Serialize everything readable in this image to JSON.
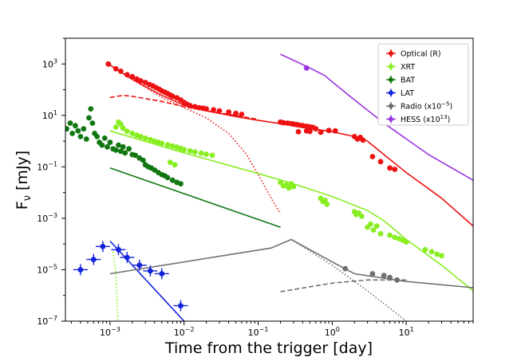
{
  "chart_data": {
    "type": "scatter",
    "xlabel": "Time from the trigger [day]",
    "ylabel": "F_ν [mJy]",
    "ylabel_main": "F",
    "ylabel_sub": "ν",
    "ylabel_unit": " [mJy]",
    "xscale": "log",
    "yscale": "log",
    "xlim": [
      0.00025,
      80
    ],
    "ylim": [
      1e-07,
      10000
    ],
    "legend_position": "top-right",
    "x_ticks": [
      {
        "value": 0.001,
        "base": "10",
        "exp": "−3"
      },
      {
        "value": 0.01,
        "base": "10",
        "exp": "−2"
      },
      {
        "value": 0.1,
        "base": "10",
        "exp": "−1"
      },
      {
        "value": 1,
        "base": "10",
        "exp": "0"
      },
      {
        "value": 10,
        "base": "10",
        "exp": "1"
      }
    ],
    "y_ticks": [
      {
        "value": 1e-07,
        "base": "10",
        "exp": "−7"
      },
      {
        "value": 1e-05,
        "base": "10",
        "exp": "−5"
      },
      {
        "value": 0.001,
        "base": "10",
        "exp": "−3"
      },
      {
        "value": 0.1,
        "base": "10",
        "exp": "−1"
      },
      {
        "value": 10,
        "base": "10",
        "exp": "1"
      },
      {
        "value": 1000,
        "base": "10",
        "exp": "3"
      }
    ],
    "legend": [
      {
        "label": "Optical (R)",
        "sup": "",
        "color": "#ee1111"
      },
      {
        "label": "XRT",
        "sup": "",
        "color": "#88ee22"
      },
      {
        "label": "BAT",
        "sup": "",
        "color": "#117711"
      },
      {
        "label": "LAT",
        "sup": "",
        "color": "#1122dd"
      },
      {
        "label": "Radio (x10",
        "sup": "−5",
        "suffix": ")",
        "color": "#707070"
      },
      {
        "label": "HESS (x10",
        "sup": "13",
        "suffix": ")",
        "color": "#9933dd"
      }
    ],
    "series": [
      {
        "name": "Optical (R)",
        "color": "#ee1111",
        "kind": "points",
        "points": [
          [
            0.00095,
            1000
          ],
          [
            0.0012,
            650
          ],
          [
            0.0014,
            520
          ],
          [
            0.0017,
            380
          ],
          [
            0.002,
            320
          ],
          [
            0.0023,
            260
          ],
          [
            0.0026,
            220
          ],
          [
            0.003,
            190
          ],
          [
            0.0034,
            160
          ],
          [
            0.0038,
            140
          ],
          [
            0.0042,
            120
          ],
          [
            0.0046,
            105
          ],
          [
            0.005,
            90
          ],
          [
            0.0055,
            80
          ],
          [
            0.006,
            70
          ],
          [
            0.0065,
            62
          ],
          [
            0.007,
            55
          ],
          [
            0.008,
            48
          ],
          [
            0.009,
            40
          ],
          [
            0.01,
            32
          ],
          [
            0.011,
            27
          ],
          [
            0.012,
            24
          ],
          [
            0.014,
            22
          ],
          [
            0.016,
            20
          ],
          [
            0.018,
            19
          ],
          [
            0.02,
            18
          ],
          [
            0.025,
            16.5
          ],
          [
            0.03,
            15
          ],
          [
            0.04,
            13.5
          ],
          [
            0.05,
            12
          ],
          [
            0.06,
            11
          ],
          [
            0.2,
            5.5
          ],
          [
            0.22,
            5.2
          ],
          [
            0.25,
            5
          ],
          [
            0.28,
            4.8
          ],
          [
            0.3,
            4.6
          ],
          [
            0.33,
            4.4
          ],
          [
            0.36,
            4.2
          ],
          [
            0.4,
            4
          ],
          [
            0.45,
            3.8
          ],
          [
            0.5,
            3.6
          ],
          [
            0.55,
            3.4
          ],
          [
            0.35,
            2.3
          ],
          [
            0.45,
            2.5
          ],
          [
            0.5,
            2.4
          ],
          [
            0.6,
            3
          ],
          [
            0.7,
            2.2
          ],
          [
            0.9,
            2.6
          ],
          [
            1.1,
            2.5
          ],
          [
            2.0,
            1.5
          ],
          [
            2.2,
            1.2
          ],
          [
            2.4,
            1.4
          ],
          [
            2.6,
            1.1
          ],
          [
            3.5,
            0.25
          ],
          [
            4.5,
            0.16
          ],
          [
            6.0,
            0.09
          ],
          [
            7.0,
            0.08
          ]
        ]
      },
      {
        "name": "XRT",
        "color": "#88ee22",
        "kind": "points",
        "points": [
          [
            0.0012,
            3.5
          ],
          [
            0.0013,
            5.5
          ],
          [
            0.0014,
            4.5
          ],
          [
            0.0015,
            3.2
          ],
          [
            0.0017,
            2.4
          ],
          [
            0.002,
            2.0
          ],
          [
            0.0023,
            1.7
          ],
          [
            0.0026,
            1.5
          ],
          [
            0.003,
            1.3
          ],
          [
            0.0035,
            1.15
          ],
          [
            0.004,
            1.0
          ],
          [
            0.0045,
            0.9
          ],
          [
            0.005,
            0.82
          ],
          [
            0.006,
            0.72
          ],
          [
            0.007,
            0.65
          ],
          [
            0.008,
            0.58
          ],
          [
            0.009,
            0.52
          ],
          [
            0.01,
            0.47
          ],
          [
            0.012,
            0.42
          ],
          [
            0.014,
            0.38
          ],
          [
            0.017,
            0.34
          ],
          [
            0.02,
            0.31
          ],
          [
            0.024,
            0.28
          ],
          [
            0.0065,
            0.15
          ],
          [
            0.0075,
            0.12
          ],
          [
            0.2,
            0.025
          ],
          [
            0.22,
            0.018
          ],
          [
            0.24,
            0.02
          ],
          [
            0.26,
            0.015
          ],
          [
            0.28,
            0.022
          ],
          [
            0.3,
            0.017
          ],
          [
            0.7,
            0.006
          ],
          [
            0.75,
            0.0045
          ],
          [
            0.8,
            0.005
          ],
          [
            0.85,
            0.0035
          ],
          [
            2.0,
            0.0018
          ],
          [
            2.1,
            0.0014
          ],
          [
            2.3,
            0.0016
          ],
          [
            2.5,
            0.0012
          ],
          [
            3.0,
            0.00045
          ],
          [
            3.3,
            0.0006
          ],
          [
            3.6,
            0.00035
          ],
          [
            4.0,
            0.0005
          ],
          [
            4.5,
            0.00025
          ],
          [
            6,
            0.00022
          ],
          [
            7,
            0.00018
          ],
          [
            8,
            0.00016
          ],
          [
            9,
            0.00014
          ],
          [
            10,
            0.00012
          ],
          [
            18,
            6e-05
          ],
          [
            22,
            5e-05
          ],
          [
            26,
            4e-05
          ],
          [
            30,
            3.5e-05
          ]
        ]
      },
      {
        "name": "BAT",
        "color": "#117711",
        "kind": "points",
        "points": [
          [
            0.00026,
            3
          ],
          [
            0.00029,
            5
          ],
          [
            0.00031,
            2
          ],
          [
            0.00034,
            4
          ],
          [
            0.00037,
            2.5
          ],
          [
            0.0004,
            1.5
          ],
          [
            0.00044,
            3
          ],
          [
            0.00048,
            1.2
          ],
          [
            0.00052,
            8
          ],
          [
            0.00055,
            18
          ],
          [
            0.00058,
            5
          ],
          [
            0.00062,
            2
          ],
          [
            0.00067,
            1.5
          ],
          [
            0.00072,
            0.9
          ],
          [
            0.00078,
            0.7
          ],
          [
            0.00085,
            1.3
          ],
          [
            0.00092,
            0.6
          ],
          [
            0.001,
            0.9
          ],
          [
            0.0011,
            0.5
          ],
          [
            0.0012,
            0.45
          ],
          [
            0.0013,
            0.7
          ],
          [
            0.0014,
            0.4
          ],
          [
            0.0015,
            0.6
          ],
          [
            0.0016,
            0.35
          ],
          [
            0.0018,
            0.5
          ],
          [
            0.002,
            0.3
          ],
          [
            0.0022,
            0.28
          ],
          [
            0.0025,
            0.22
          ],
          [
            0.0028,
            0.18
          ],
          [
            0.003,
            0.12
          ],
          [
            0.0033,
            0.1
          ],
          [
            0.0036,
            0.09
          ],
          [
            0.004,
            0.075
          ],
          [
            0.0045,
            0.06
          ],
          [
            0.005,
            0.05
          ],
          [
            0.0055,
            0.045
          ],
          [
            0.006,
            0.038
          ],
          [
            0.007,
            0.03
          ],
          [
            0.008,
            0.025
          ],
          [
            0.009,
            0.022
          ]
        ]
      },
      {
        "name": "LAT",
        "color": "#1122dd",
        "kind": "points",
        "points": [
          [
            0.0004,
            1e-05
          ],
          [
            0.0006,
            2.5e-05
          ],
          [
            0.0008,
            8e-05
          ],
          [
            0.0013,
            6e-05
          ],
          [
            0.0017,
            3e-05
          ],
          [
            0.0025,
            1.5e-05
          ],
          [
            0.0035,
            9e-06
          ],
          [
            0.005,
            7e-06
          ],
          [
            0.009,
            4e-07
          ]
        ]
      },
      {
        "name": "Radio (x10−5)",
        "color": "#707070",
        "kind": "points",
        "points": [
          [
            1.5,
            1.1e-05
          ],
          [
            3.5,
            7e-06
          ],
          [
            5.0,
            6e-06
          ],
          [
            6.0,
            5e-06
          ],
          [
            7.5,
            4e-06
          ]
        ]
      },
      {
        "name": "HESS (x10¹³)",
        "color": "#9933dd",
        "kind": "points",
        "points": [
          [
            0.45,
            700
          ]
        ]
      }
    ],
    "model_curves": [
      {
        "name": "Optical model total",
        "color": "#ee1111",
        "style": "solid",
        "points": [
          [
            0.001,
            900
          ],
          [
            0.002,
            250
          ],
          [
            0.005,
            60
          ],
          [
            0.01,
            25
          ],
          [
            0.02,
            15
          ],
          [
            0.05,
            9
          ],
          [
            0.1,
            6.5
          ],
          [
            0.3,
            4
          ],
          [
            1,
            2.3
          ],
          [
            2,
            1.5
          ],
          [
            3,
            1.0
          ],
          [
            5,
            0.3
          ],
          [
            10,
            0.06
          ],
          [
            30,
            0.006
          ],
          [
            80,
            0.0005
          ]
        ]
      },
      {
        "name": "Optical reverse shock",
        "color": "#ee1111",
        "style": "dotted",
        "points": [
          [
            0.001,
            900
          ],
          [
            0.002,
            250
          ],
          [
            0.005,
            50
          ],
          [
            0.01,
            20
          ],
          [
            0.02,
            8
          ],
          [
            0.04,
            2
          ],
          [
            0.07,
            0.3
          ],
          [
            0.1,
            0.05
          ],
          [
            0.15,
            0.006
          ],
          [
            0.2,
            0.0015
          ]
        ]
      },
      {
        "name": "Optical forward shock",
        "color": "#ee1111",
        "style": "dashed",
        "points": [
          [
            0.001,
            50
          ],
          [
            0.0015,
            60
          ],
          [
            0.002,
            55
          ],
          [
            0.005,
            35
          ],
          [
            0.01,
            22
          ],
          [
            0.02,
            15
          ],
          [
            0.05,
            10
          ],
          [
            0.1,
            7
          ]
        ]
      },
      {
        "name": "XRT model",
        "color": "#88ee22",
        "style": "solid",
        "points": [
          [
            0.001,
            2.5
          ],
          [
            0.01,
            0.35
          ],
          [
            0.1,
            0.055
          ],
          [
            0.3,
            0.022
          ],
          [
            1,
            0.007
          ],
          [
            3,
            0.002
          ],
          [
            5,
            0.0008
          ],
          [
            10,
            0.00015
          ],
          [
            30,
            1.5e-05
          ],
          [
            80,
            1.5e-06
          ]
        ]
      },
      {
        "name": "XRT early decay",
        "color": "#88ee22",
        "style": "dotted",
        "points": [
          [
            0.0011,
            5e-05
          ],
          [
            0.0012,
            8e-06
          ],
          [
            0.00128,
            1e-07
          ]
        ]
      },
      {
        "name": "BAT model",
        "color": "#117711",
        "style": "solid",
        "points": [
          [
            0.001,
            0.09
          ],
          [
            0.2,
            0.00045
          ]
        ]
      },
      {
        "name": "LAT model",
        "color": "#1122dd",
        "style": "solid",
        "points": [
          [
            0.001,
            0.00013
          ],
          [
            0.01,
            1e-07
          ]
        ]
      },
      {
        "name": "Radio model total",
        "color": "#707070",
        "style": "solid",
        "points": [
          [
            0.001,
            7e-06
          ],
          [
            0.15,
            7e-05
          ],
          [
            0.28,
            0.00015
          ],
          [
            1,
            2e-05
          ],
          [
            2,
            7e-06
          ],
          [
            10,
            3.5e-06
          ],
          [
            80,
            2e-06
          ]
        ]
      },
      {
        "name": "Radio model early",
        "color": "#707070",
        "style": "dotted",
        "points": [
          [
            0.28,
            0.00015
          ],
          [
            1,
            1.5e-05
          ],
          [
            3,
            1.5e-06
          ],
          [
            10,
            1e-07
          ]
        ]
      },
      {
        "name": "Radio model late",
        "color": "#707070",
        "style": "dashed",
        "points": [
          [
            0.2,
            1.4e-06
          ],
          [
            1,
            3e-06
          ],
          [
            3,
            4e-06
          ],
          [
            10,
            4e-06
          ]
        ]
      },
      {
        "name": "HESS model",
        "color": "#9933dd",
        "style": "solid",
        "points": [
          [
            0.2,
            2400
          ],
          [
            0.5,
            700
          ],
          [
            0.8,
            350
          ],
          [
            1,
            200
          ],
          [
            2,
            40
          ],
          [
            5,
            5
          ],
          [
            20,
            0.3
          ],
          [
            80,
            0.03
          ]
        ]
      }
    ]
  }
}
